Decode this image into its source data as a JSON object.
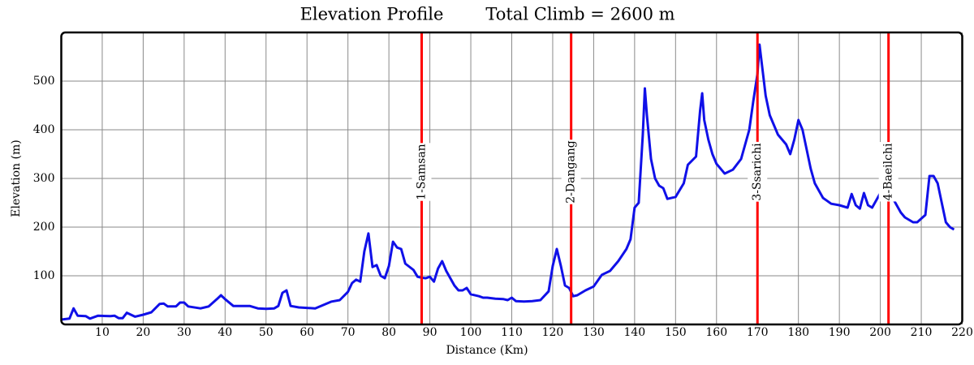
{
  "chart_data": {
    "type": "line",
    "title": "Elevation Profile",
    "annotation": "Total Climb = 2600 m",
    "x_label": "Distance (Km)",
    "y_label": "Elevation (m)",
    "color": "#1010e8",
    "grid": true,
    "xlim": [
      0,
      220
    ],
    "ylim": [
      0,
      600
    ],
    "xticks": [
      10,
      20,
      30,
      40,
      50,
      60,
      70,
      80,
      90,
      100,
      110,
      120,
      130,
      140,
      150,
      160,
      170,
      180,
      190,
      200,
      210,
      220
    ],
    "yticks": [
      100,
      200,
      300,
      400,
      500
    ],
    "x": [
      0,
      2,
      3,
      4,
      6,
      7,
      9,
      12,
      13,
      14,
      15,
      16,
      17,
      18,
      20,
      22,
      24,
      25,
      26,
      28,
      29,
      30,
      31,
      34,
      36,
      38,
      39,
      40,
      42,
      44,
      46,
      48,
      50,
      52,
      53,
      54,
      55,
      56,
      58,
      62,
      64,
      66,
      68,
      70,
      71,
      72,
      73,
      74,
      75,
      76,
      77,
      78,
      79,
      80,
      81,
      82,
      83,
      84,
      86,
      87,
      88,
      89,
      90,
      91,
      92,
      93,
      94,
      96,
      97,
      98,
      99,
      100,
      102,
      103,
      104,
      106,
      108,
      109,
      110,
      111,
      113,
      115,
      117,
      119,
      120,
      121,
      122,
      123,
      124,
      125,
      126,
      128,
      130,
      131,
      132,
      134,
      136,
      138,
      139,
      140,
      141,
      142,
      142.5,
      143,
      144,
      145,
      146,
      147,
      148,
      150,
      152,
      153,
      155,
      156,
      156.5,
      157,
      158,
      159,
      160,
      162,
      164,
      166,
      168,
      169,
      170,
      170.5,
      171,
      172,
      173,
      175,
      177,
      178,
      179,
      180,
      181,
      182,
      183,
      184,
      186,
      188,
      190,
      192,
      193,
      194,
      195,
      196,
      197,
      198,
      200,
      202,
      203,
      204,
      205,
      206,
      208,
      209,
      211,
      212,
      213,
      214,
      215,
      216,
      217,
      218
    ],
    "values": [
      10,
      12,
      33,
      18,
      17,
      12,
      18,
      17,
      18,
      13,
      13,
      24,
      20,
      16,
      20,
      25,
      42,
      43,
      37,
      37,
      45,
      45,
      37,
      33,
      37,
      52,
      60,
      52,
      38,
      38,
      38,
      33,
      32,
      33,
      38,
      65,
      70,
      38,
      35,
      33,
      40,
      47,
      50,
      67,
      85,
      92,
      88,
      150,
      187,
      118,
      122,
      100,
      95,
      120,
      170,
      158,
      155,
      125,
      112,
      98,
      96,
      95,
      98,
      88,
      115,
      130,
      110,
      80,
      70,
      70,
      75,
      62,
      58,
      55,
      55,
      53,
      52,
      50,
      55,
      48,
      47,
      48,
      50,
      68,
      120,
      155,
      120,
      80,
      75,
      58,
      60,
      70,
      78,
      90,
      102,
      110,
      130,
      155,
      175,
      240,
      250,
      390,
      485,
      430,
      340,
      300,
      285,
      280,
      258,
      262,
      290,
      328,
      345,
      440,
      475,
      420,
      380,
      350,
      330,
      310,
      318,
      340,
      400,
      460,
      515,
      575,
      540,
      470,
      430,
      390,
      370,
      350,
      380,
      420,
      400,
      360,
      320,
      290,
      260,
      248,
      245,
      240,
      268,
      245,
      238,
      270,
      245,
      240,
      270,
      297,
      260,
      245,
      230,
      220,
      210,
      210,
      225,
      305,
      305,
      290,
      250,
      210,
      200,
      195
    ],
    "markers": [
      {
        "x": 88,
        "label": "1-Samsan"
      },
      {
        "x": 124.5,
        "label": "2-Dangang"
      },
      {
        "x": 170,
        "label": "3-Ssarichi"
      },
      {
        "x": 202,
        "label": "4-Baeilchi"
      }
    ],
    "marker_color": "#ff0000"
  }
}
